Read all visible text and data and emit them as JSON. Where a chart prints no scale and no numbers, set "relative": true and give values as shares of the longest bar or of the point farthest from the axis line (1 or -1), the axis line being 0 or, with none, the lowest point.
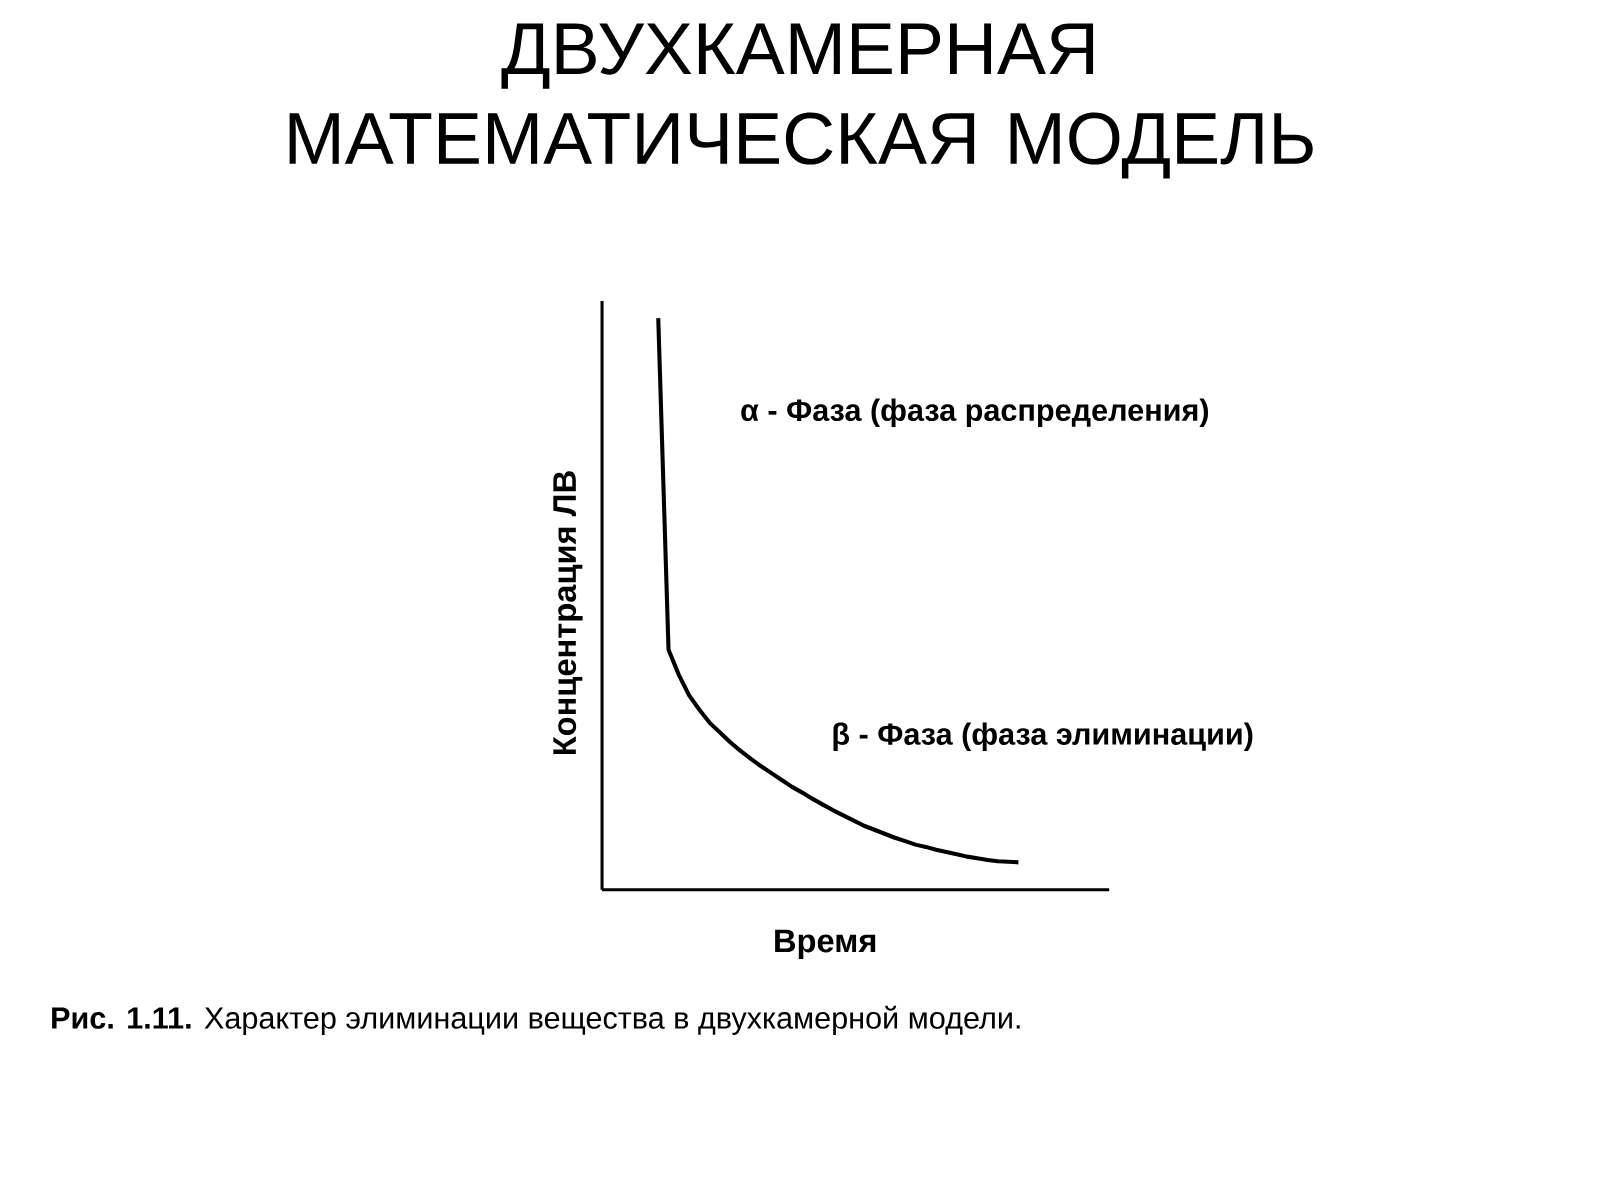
{
  "chart_data": {
    "type": "line",
    "title": "ДВУХКАМЕРНАЯ МАТЕМАТИЧЕСКАЯ МОДЕЛЬ",
    "xlabel": "Время",
    "ylabel": "Концентрация ЛВ",
    "relative": true,
    "color": "#000000",
    "annotations": [
      "α - Фаза (фаза распределения)",
      "β - Фаза (фаза элиминации)",
      "**Рис. 1.11.** Характер элиминации вещества в двухкамерной модели."
    ],
    "categories": [
      null,
      null,
      null,
      null,
      null,
      null,
      null,
      null,
      null,
      null,
      null,
      null,
      null,
      null,
      null,
      null,
      null,
      null,
      null,
      null,
      null,
      null,
      null,
      null,
      null,
      null,
      null,
      null,
      null,
      null,
      null,
      null,
      null,
      null,
      null,
      null
    ],
    "values": [
      1.0,
      0.42,
      0.376,
      0.34,
      0.315,
      0.292,
      0.275,
      0.258,
      0.243,
      0.229,
      0.216,
      0.204,
      0.192,
      0.18,
      0.17,
      0.159,
      0.149,
      0.139,
      0.13,
      0.121,
      0.112,
      0.105,
      0.098,
      0.091,
      0.085,
      0.079,
      0.075,
      0.07,
      0.066,
      0.062,
      0.058,
      0.055,
      0.052,
      0.05,
      0.049,
      0.048
    ]
  }
}
